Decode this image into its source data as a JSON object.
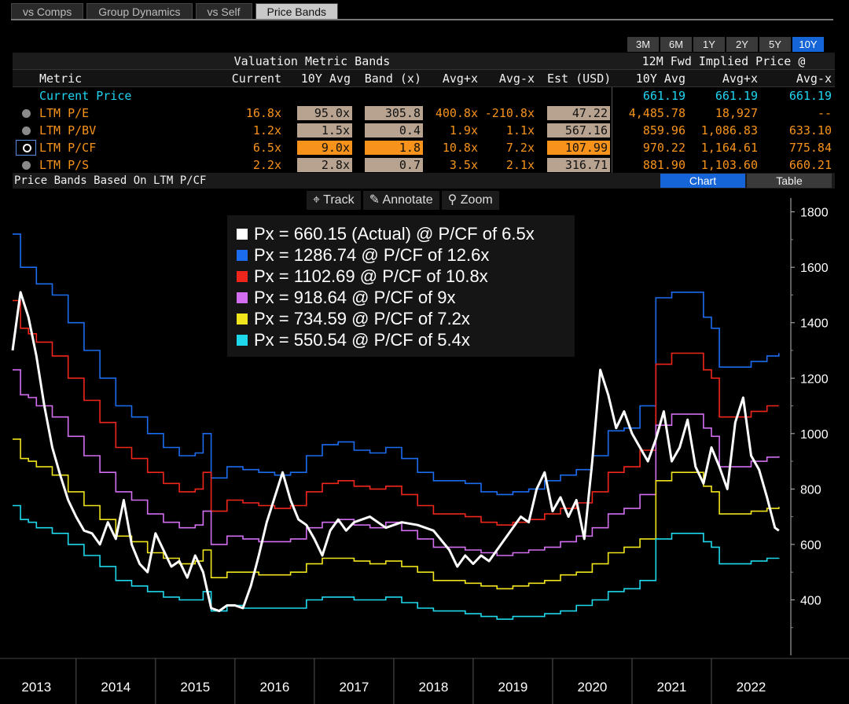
{
  "tabs": [
    {
      "label": "vs Comps",
      "active": false
    },
    {
      "label": "Group Dynamics",
      "active": false
    },
    {
      "label": "vs Self",
      "active": false
    },
    {
      "label": "Price Bands",
      "active": true
    }
  ],
  "periods": [
    {
      "label": "3M",
      "active": false
    },
    {
      "label": "6M",
      "active": false
    },
    {
      "label": "1Y",
      "active": false
    },
    {
      "label": "2Y",
      "active": false
    },
    {
      "label": "5Y",
      "active": false
    },
    {
      "label": "10Y",
      "active": true
    }
  ],
  "table": {
    "group_left": "Valuation Metric Bands",
    "group_right": "12M Fwd Implied Price @",
    "columns": [
      "Metric",
      "Current",
      "10Y Avg",
      "Band (x)",
      "Avg+x",
      "Avg-x",
      "Est (USD)",
      "10Y Avg",
      "Avg+x",
      "Avg-x"
    ],
    "current_price": {
      "label": "Current Price",
      "ten_y": "661.19",
      "plus": "661.19",
      "minus": "661.19"
    },
    "rows": [
      {
        "metric": "LTM P/E",
        "current": "16.8x",
        "avg": "95.0x",
        "band": "305.8",
        "plus": "400.8x",
        "minus": "-210.8x",
        "est": "47.22",
        "p_avg": "4,485.78",
        "p_plus": "18,927",
        "p_minus": "--"
      },
      {
        "metric": "LTM P/BV",
        "current": "1.2x",
        "avg": "1.5x",
        "band": "0.4",
        "plus": "1.9x",
        "minus": "1.1x",
        "est": "567.16",
        "p_avg": "859.96",
        "p_plus": "1,086.83",
        "p_minus": "633.10"
      },
      {
        "metric": "LTM P/CF",
        "current": "6.5x",
        "avg": "9.0x",
        "band": "1.8",
        "plus": "10.8x",
        "minus": "7.2x",
        "est": "107.99",
        "p_avg": "970.22",
        "p_plus": "1,164.61",
        "p_minus": "775.84",
        "selected": true
      },
      {
        "metric": "LTM P/S",
        "current": "2.2x",
        "avg": "2.8x",
        "band": "0.7",
        "plus": "3.5x",
        "minus": "2.1x",
        "est": "316.71",
        "p_avg": "881.90",
        "p_plus": "1,103.60",
        "p_minus": "660.21"
      }
    ]
  },
  "subtitle": "Price Bands Based On LTM P/CF",
  "view_buttons": {
    "chart": "Chart",
    "table": "Table"
  },
  "toolbar": {
    "track": "Track",
    "annotate": "Annotate",
    "zoom": "Zoom"
  },
  "colors": {
    "actual": "#ffffff",
    "band_high": "#1c6cf0",
    "band_plus": "#f0261c",
    "band_avg": "#d36ef0",
    "band_minus": "#f0e41c",
    "band_low": "#1ed8ec",
    "accent": "#f7931a",
    "active_blue": "#1565d8"
  },
  "chart_data": {
    "type": "line",
    "title": "Price Bands Based On LTM P/CF",
    "xlabel": "",
    "ylabel": "",
    "xlim": [
      2012.7,
      2022.5
    ],
    "ylim": [
      200,
      1850
    ],
    "y_ticks": [
      400,
      600,
      800,
      1000,
      1200,
      1400,
      1600,
      1800
    ],
    "x_ticks": [
      "2013",
      "2014",
      "2015",
      "2016",
      "2017",
      "2018",
      "2019",
      "2020",
      "2021",
      "2022"
    ],
    "legend": [
      "Px = 660.15 (Actual) @ P/CF of 6.5x",
      "Px = 1286.74 @ P/CF of 12.6x",
      "Px = 1102.69 @ P/CF of 10.8x",
      "Px = 918.64 @ P/CF of 9x",
      "Px = 734.59 @ P/CF of 7.2x",
      "Px = 550.54 @ P/CF of 5.4x"
    ],
    "series": [
      {
        "name": "Actual",
        "color": "#ffffff",
        "x": [
          2012.7,
          2012.8,
          2012.9,
          2013.0,
          2013.1,
          2013.2,
          2013.3,
          2013.4,
          2013.5,
          2013.6,
          2013.7,
          2013.8,
          2013.9,
          2014.0,
          2014.1,
          2014.2,
          2014.3,
          2014.4,
          2014.5,
          2014.6,
          2014.7,
          2014.8,
          2014.9,
          2015.0,
          2015.1,
          2015.2,
          2015.3,
          2015.4,
          2015.5,
          2015.6,
          2015.7,
          2015.8,
          2015.9,
          2016.0,
          2016.1,
          2016.2,
          2016.3,
          2016.4,
          2016.5,
          2016.6,
          2016.7,
          2016.8,
          2016.9,
          2017.0,
          2017.2,
          2017.4,
          2017.6,
          2017.8,
          2018.0,
          2018.2,
          2018.3,
          2018.4,
          2018.5,
          2018.6,
          2018.7,
          2018.8,
          2018.9,
          2019.0,
          2019.1,
          2019.2,
          2019.3,
          2019.4,
          2019.5,
          2019.6,
          2019.7,
          2019.8,
          2019.9,
          2020.0,
          2020.1,
          2020.2,
          2020.3,
          2020.4,
          2020.5,
          2020.6,
          2020.7,
          2020.8,
          2020.9,
          2021.0,
          2021.1,
          2021.2,
          2021.3,
          2021.4,
          2021.5,
          2021.6,
          2021.7,
          2021.8,
          2021.9,
          2022.0,
          2022.1,
          2022.2,
          2022.3,
          2022.35
        ],
        "values": [
          1300,
          1510,
          1420,
          1280,
          1100,
          950,
          850,
          760,
          700,
          650,
          640,
          600,
          680,
          620,
          760,
          600,
          530,
          500,
          640,
          580,
          520,
          540,
          480,
          560,
          500,
          370,
          360,
          380,
          380,
          370,
          450,
          560,
          680,
          770,
          860,
          760,
          690,
          670,
          620,
          560,
          650,
          690,
          650,
          680,
          700,
          660,
          680,
          670,
          650,
          580,
          520,
          560,
          530,
          560,
          540,
          580,
          620,
          660,
          700,
          680,
          800,
          860,
          720,
          770,
          700,
          760,
          620,
          900,
          1230,
          1140,
          1020,
          1080,
          1000,
          950,
          900,
          980,
          1080,
          900,
          950,
          1050,
          880,
          820,
          950,
          880,
          800,
          1040,
          1130,
          920,
          870,
          770,
          660,
          650
        ]
      },
      {
        "name": "P/CF 12.6x",
        "color": "#1c6cf0",
        "x": [
          2012.7,
          2012.8,
          2012.9,
          2013.0,
          2013.2,
          2013.4,
          2013.6,
          2013.8,
          2014.0,
          2014.2,
          2014.4,
          2014.6,
          2014.8,
          2015.0,
          2015.1,
          2015.2,
          2015.4,
          2015.6,
          2015.8,
          2016.0,
          2016.2,
          2016.4,
          2016.6,
          2016.8,
          2017.0,
          2017.2,
          2017.4,
          2017.6,
          2017.8,
          2018.0,
          2018.2,
          2018.4,
          2018.6,
          2018.8,
          2019.0,
          2019.2,
          2019.4,
          2019.6,
          2019.8,
          2020.0,
          2020.2,
          2020.4,
          2020.6,
          2020.8,
          2021.0,
          2021.2,
          2021.4,
          2021.5,
          2021.6,
          2021.8,
          2022.0,
          2022.2,
          2022.35
        ],
        "values": [
          1720,
          1600,
          1600,
          1540,
          1500,
          1400,
          1300,
          1200,
          1100,
          1060,
          1000,
          950,
          920,
          930,
          1000,
          840,
          880,
          870,
          860,
          850,
          860,
          920,
          960,
          970,
          940,
          930,
          950,
          910,
          860,
          830,
          830,
          820,
          790,
          780,
          790,
          800,
          830,
          850,
          870,
          920,
          1010,
          1020,
          1100,
          1490,
          1510,
          1510,
          1420,
          1380,
          1240,
          1240,
          1260,
          1280,
          1290
        ]
      },
      {
        "name": "P/CF 10.8x",
        "color": "#f0261c",
        "x": [
          2012.7,
          2012.8,
          2012.9,
          2013.0,
          2013.2,
          2013.4,
          2013.6,
          2013.8,
          2014.0,
          2014.2,
          2014.4,
          2014.6,
          2014.8,
          2015.0,
          2015.1,
          2015.2,
          2015.4,
          2015.6,
          2015.8,
          2016.0,
          2016.2,
          2016.4,
          2016.6,
          2016.8,
          2017.0,
          2017.2,
          2017.4,
          2017.6,
          2017.8,
          2018.0,
          2018.2,
          2018.4,
          2018.6,
          2018.8,
          2019.0,
          2019.2,
          2019.4,
          2019.6,
          2019.8,
          2020.0,
          2020.2,
          2020.4,
          2020.6,
          2020.8,
          2021.0,
          2021.2,
          2021.4,
          2021.5,
          2021.6,
          2021.8,
          2022.0,
          2022.2,
          2022.35
        ],
        "values": [
          1480,
          1380,
          1360,
          1330,
          1280,
          1200,
          1120,
          1040,
          950,
          910,
          860,
          820,
          790,
          800,
          860,
          720,
          760,
          750,
          740,
          730,
          740,
          790,
          820,
          830,
          810,
          800,
          810,
          780,
          740,
          710,
          710,
          700,
          680,
          670,
          680,
          690,
          710,
          730,
          750,
          790,
          860,
          880,
          940,
          1250,
          1290,
          1290,
          1230,
          1200,
          1060,
          1060,
          1080,
          1100,
          1100
        ]
      },
      {
        "name": "P/CF 9x",
        "color": "#d36ef0",
        "x": [
          2012.7,
          2012.8,
          2012.9,
          2013.0,
          2013.2,
          2013.4,
          2013.6,
          2013.8,
          2014.0,
          2014.2,
          2014.4,
          2014.6,
          2014.8,
          2015.0,
          2015.1,
          2015.2,
          2015.4,
          2015.6,
          2015.8,
          2016.0,
          2016.2,
          2016.4,
          2016.6,
          2016.8,
          2017.0,
          2017.2,
          2017.4,
          2017.6,
          2017.8,
          2018.0,
          2018.2,
          2018.4,
          2018.6,
          2018.8,
          2019.0,
          2019.2,
          2019.4,
          2019.6,
          2019.8,
          2020.0,
          2020.2,
          2020.4,
          2020.6,
          2020.8,
          2021.0,
          2021.2,
          2021.4,
          2021.5,
          2021.6,
          2021.8,
          2022.0,
          2022.2,
          2022.35
        ],
        "values": [
          1230,
          1140,
          1130,
          1100,
          1060,
          990,
          920,
          860,
          790,
          760,
          710,
          680,
          660,
          670,
          720,
          600,
          630,
          620,
          610,
          610,
          620,
          660,
          680,
          690,
          670,
          660,
          680,
          650,
          620,
          590,
          590,
          580,
          570,
          560,
          570,
          580,
          590,
          610,
          630,
          660,
          710,
          730,
          780,
          1030,
          1070,
          1070,
          1020,
          990,
          880,
          880,
          900,
          915,
          918
        ]
      },
      {
        "name": "P/CF 7.2x",
        "color": "#f0e41c",
        "x": [
          2012.7,
          2012.8,
          2012.9,
          2013.0,
          2013.2,
          2013.4,
          2013.6,
          2013.8,
          2014.0,
          2014.2,
          2014.4,
          2014.6,
          2014.8,
          2015.0,
          2015.1,
          2015.2,
          2015.4,
          2015.6,
          2015.8,
          2016.0,
          2016.2,
          2016.4,
          2016.6,
          2016.8,
          2017.0,
          2017.2,
          2017.4,
          2017.6,
          2017.8,
          2018.0,
          2018.2,
          2018.4,
          2018.6,
          2018.8,
          2019.0,
          2019.2,
          2019.4,
          2019.6,
          2019.8,
          2020.0,
          2020.2,
          2020.4,
          2020.6,
          2020.8,
          2021.0,
          2021.2,
          2021.4,
          2021.5,
          2021.6,
          2021.8,
          2022.0,
          2022.2,
          2022.35
        ],
        "values": [
          980,
          910,
          900,
          880,
          850,
          790,
          740,
          690,
          630,
          610,
          570,
          550,
          530,
          540,
          580,
          480,
          500,
          500,
          490,
          490,
          500,
          530,
          550,
          550,
          540,
          530,
          540,
          520,
          500,
          470,
          470,
          460,
          450,
          440,
          450,
          460,
          470,
          490,
          500,
          530,
          570,
          590,
          620,
          830,
          860,
          860,
          810,
          790,
          710,
          710,
          720,
          730,
          735
        ]
      },
      {
        "name": "P/CF 5.4x",
        "color": "#1ed8ec",
        "x": [
          2012.7,
          2012.8,
          2012.9,
          2013.0,
          2013.2,
          2013.4,
          2013.6,
          2013.8,
          2014.0,
          2014.2,
          2014.4,
          2014.6,
          2014.8,
          2015.0,
          2015.1,
          2015.2,
          2015.4,
          2015.6,
          2015.8,
          2016.0,
          2016.2,
          2016.4,
          2016.6,
          2016.8,
          2017.0,
          2017.2,
          2017.4,
          2017.6,
          2017.8,
          2018.0,
          2018.2,
          2018.4,
          2018.6,
          2018.8,
          2019.0,
          2019.2,
          2019.4,
          2019.6,
          2019.8,
          2020.0,
          2020.2,
          2020.4,
          2020.6,
          2020.8,
          2021.0,
          2021.2,
          2021.4,
          2021.5,
          2021.6,
          2021.8,
          2022.0,
          2022.2,
          2022.35
        ],
        "values": [
          740,
          690,
          680,
          660,
          640,
          600,
          560,
          520,
          470,
          450,
          430,
          410,
          400,
          400,
          430,
          360,
          380,
          370,
          370,
          370,
          370,
          400,
          410,
          410,
          400,
          400,
          410,
          390,
          370,
          360,
          360,
          350,
          340,
          330,
          340,
          340,
          350,
          360,
          380,
          400,
          430,
          440,
          470,
          620,
          640,
          640,
          610,
          590,
          530,
          530,
          540,
          550,
          551
        ]
      }
    ]
  }
}
